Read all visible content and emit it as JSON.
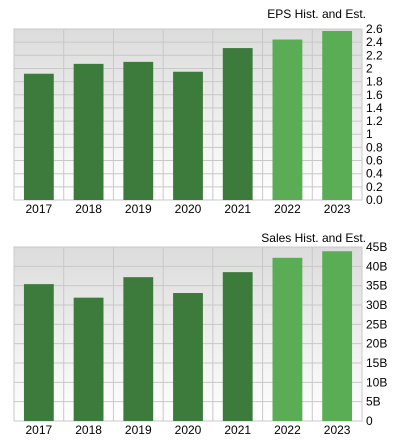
{
  "colors": {
    "hist_bar": "#3d7b3c",
    "est_bar": "#5aac55",
    "grid": "#c8c8c8",
    "plot_bg_top": "#dcdcdc",
    "plot_bg_bottom": "#ffffff"
  },
  "chart_data": [
    {
      "type": "bar",
      "title": "EPS Hist. and Est.",
      "categories": [
        "2017",
        "2018",
        "2019",
        "2020",
        "2021",
        "2022",
        "2023"
      ],
      "values": [
        1.92,
        2.07,
        2.1,
        1.95,
        2.31,
        2.44,
        2.57
      ],
      "estimate_from_index": 5,
      "ylim": [
        0,
        2.6
      ],
      "yticks": [
        0,
        0.2,
        0.4,
        0.6,
        0.8,
        1,
        1.2,
        1.4,
        1.6,
        1.8,
        2,
        2.2,
        2.4,
        2.6
      ],
      "ytick_labels": [
        "0.0",
        "0.2",
        "0.4",
        "0.6",
        "0.8",
        "1",
        "1.2",
        "1.4",
        "1.6",
        "1.8",
        "2",
        "2.2",
        "2.4",
        "2.6"
      ],
      "grid": true
    },
    {
      "type": "bar",
      "title": "Sales Hist. and Est.",
      "categories": [
        "2017",
        "2018",
        "2019",
        "2020",
        "2021",
        "2022",
        "2023"
      ],
      "values": [
        35.4,
        31.9,
        37.2,
        33.1,
        38.5,
        42.2,
        43.9
      ],
      "value_unit": "billions",
      "estimate_from_index": 5,
      "ylim": [
        0,
        45
      ],
      "yticks": [
        0,
        5,
        10,
        15,
        20,
        25,
        30,
        35,
        40,
        45
      ],
      "ytick_labels": [
        "0",
        "5B",
        "10B",
        "15B",
        "20B",
        "25B",
        "30B",
        "35B",
        "40B",
        "45B"
      ],
      "grid": true
    }
  ]
}
